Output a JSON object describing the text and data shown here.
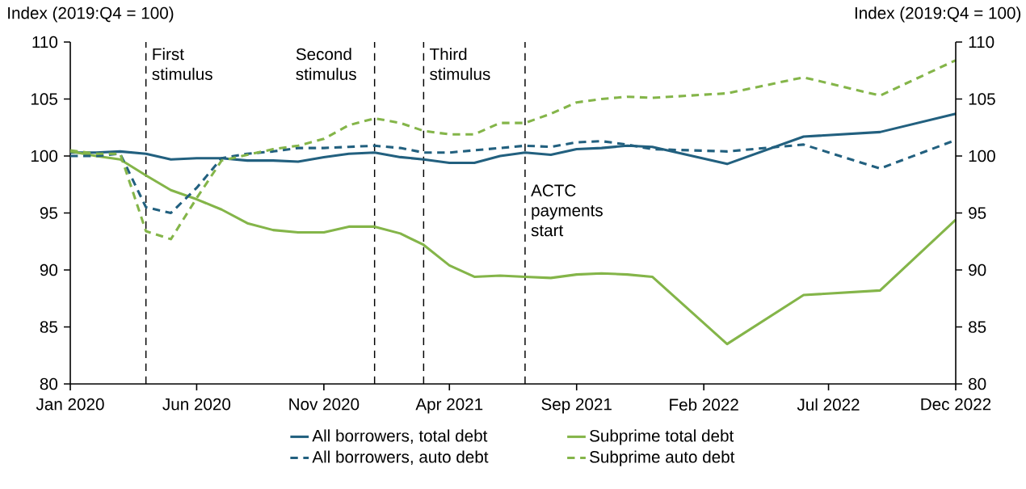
{
  "chart_data": {
    "type": "line",
    "ylabel": "Index (2019:Q4 = 100)",
    "y2label": "Index (2019:Q4 = 100)",
    "x": [
      "2020-01",
      "2020-02",
      "2020-03",
      "2020-04",
      "2020-05",
      "2020-06",
      "2020-07",
      "2020-08",
      "2020-09",
      "2020-10",
      "2020-11",
      "2020-12",
      "2021-01",
      "2021-02",
      "2021-03",
      "2021-04",
      "2021-05",
      "2021-06",
      "2021-07",
      "2021-08",
      "2021-09",
      "2021-10",
      "2021-11",
      "2021-12",
      "2022-03",
      "2022-06",
      "2022-09",
      "2022-12"
    ],
    "series": [
      {
        "name": "All borrowers, total debt",
        "color": "#22607f",
        "line_style": "solid",
        "values": [
          100.3,
          100.3,
          100.4,
          100.2,
          99.7,
          99.8,
          99.8,
          99.6,
          99.6,
          99.5,
          99.9,
          100.2,
          100.3,
          99.9,
          99.7,
          99.4,
          99.4,
          100.0,
          100.3,
          100.1,
          100.6,
          100.7,
          100.9,
          100.8,
          99.3,
          101.7,
          102.1,
          103.7
        ]
      },
      {
        "name": "Subprime total debt",
        "color": "#84b549",
        "line_style": "solid",
        "values": [
          100.4,
          100.0,
          99.7,
          98.3,
          97.0,
          96.2,
          95.3,
          94.1,
          93.5,
          93.3,
          93.3,
          93.8,
          93.8,
          93.2,
          92.2,
          90.4,
          89.4,
          89.5,
          89.4,
          89.3,
          89.6,
          89.7,
          89.6,
          89.4,
          83.5,
          87.8,
          88.2,
          94.4
        ]
      },
      {
        "name": "All borrowers, auto debt",
        "color": "#22607f",
        "line_style": "dashed",
        "values": [
          100.0,
          100.0,
          100.2,
          95.5,
          95.0,
          97.2,
          99.8,
          100.2,
          100.4,
          100.7,
          100.7,
          100.8,
          100.9,
          100.7,
          100.3,
          100.3,
          100.5,
          100.7,
          100.9,
          100.8,
          101.2,
          101.3,
          101.0,
          100.6,
          100.4,
          101.0,
          98.9,
          101.4
        ]
      },
      {
        "name": "Subprime auto debt",
        "color": "#84b549",
        "line_style": "dashed",
        "values": [
          100.5,
          100.2,
          100.2,
          93.4,
          92.7,
          96.3,
          99.6,
          100.1,
          100.6,
          100.9,
          101.5,
          102.7,
          103.3,
          102.9,
          102.2,
          101.9,
          101.9,
          102.9,
          102.9,
          103.7,
          104.7,
          105.0,
          105.2,
          105.1,
          105.5,
          106.9,
          105.3,
          108.4
        ]
      }
    ],
    "xlim": [
      "2020-01",
      "2022-12"
    ],
    "xticks": [
      {
        "value": "2020-01",
        "label": "Jan 2020"
      },
      {
        "value": "2020-06",
        "label": "Jun 2020"
      },
      {
        "value": "2020-11",
        "label": "Nov 2020"
      },
      {
        "value": "2021-04",
        "label": "Apr 2021"
      },
      {
        "value": "2021-09",
        "label": "Sep 2021"
      },
      {
        "value": "2022-02",
        "label": "Feb 2022"
      },
      {
        "value": "2022-07",
        "label": "Jul 2022"
      },
      {
        "value": "2022-12",
        "label": "Dec 2022"
      }
    ],
    "ylim": [
      80,
      110
    ],
    "yticks": [
      80,
      85,
      90,
      95,
      100,
      105,
      110
    ],
    "y2lim": [
      80,
      110
    ],
    "y2ticks": [
      80,
      85,
      90,
      95,
      100,
      105,
      110
    ],
    "ref_lines": [
      {
        "axis": "x",
        "value": "2020-04",
        "label": "First stimulus",
        "color": "#000000",
        "line_style": "dashed"
      },
      {
        "axis": "x",
        "value": "2021-01",
        "label": "Second stimulus",
        "color": "#000000",
        "line_style": "dashed"
      },
      {
        "axis": "x",
        "value": "2021-03",
        "label": "Third stimulus",
        "color": "#000000",
        "line_style": "dashed"
      },
      {
        "axis": "x",
        "value": "2021-07",
        "label": "ACTC payments start",
        "color": "#000000",
        "line_style": "dashed"
      }
    ],
    "grid": false,
    "legend": "bottom"
  }
}
